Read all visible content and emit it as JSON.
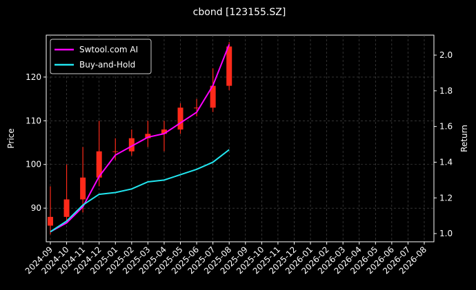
{
  "chart_data": {
    "type": "candlestick",
    "title": "cbond [123155.SZ]",
    "ylabel": "Price",
    "y2label": "Return",
    "x": [
      "2024-09",
      "2024-10",
      "2024-11",
      "2024-12",
      "2025-01",
      "2025-02",
      "2025-03",
      "2025-04",
      "2025-05",
      "2025-06",
      "2025-07",
      "2025-08"
    ],
    "open": [
      86,
      88,
      92,
      97,
      103,
      103,
      106,
      107,
      108,
      113,
      113,
      118
    ],
    "high": [
      95,
      100,
      104,
      110,
      106,
      108,
      110,
      110,
      114,
      115,
      122,
      128
    ],
    "low": [
      84,
      87,
      89,
      95,
      101,
      102,
      104,
      103,
      107,
      111,
      112,
      117
    ],
    "close": [
      88,
      92,
      97,
      103,
      103,
      106,
      107,
      108,
      113,
      113,
      118,
      127
    ],
    "up_color": "#ff2a1a",
    "down_color": "#18b018",
    "series": [
      {
        "name": "Swtool.com AI",
        "color": "#ff00ff",
        "axis": "y2",
        "values": [
          1.01,
          1.06,
          1.15,
          1.32,
          1.44,
          1.49,
          1.54,
          1.56,
          1.62,
          1.68,
          1.83,
          2.06
        ]
      },
      {
        "name": "Buy-and-Hold",
        "color": "#22e6f0",
        "axis": "y2",
        "values": [
          1.01,
          1.07,
          1.16,
          1.22,
          1.23,
          1.25,
          1.29,
          1.3,
          1.33,
          1.36,
          1.4,
          1.47
        ]
      }
    ],
    "xticks": [
      "2024-09",
      "2024-10",
      "2024-11",
      "2024-12",
      "2025-01",
      "2025-02",
      "2025-03",
      "2025-04",
      "2025-05",
      "2025-06",
      "2025-07",
      "2025-08",
      "2025-09",
      "2025-10",
      "2025-11",
      "2025-12",
      "2026-01",
      "2026-02",
      "2026-03",
      "2026-04",
      "2026-05",
      "2026-06",
      "2026-07",
      "2026-08"
    ],
    "ylim": [
      82.3,
      129.6
    ],
    "yticks": [
      90,
      100,
      110,
      120
    ],
    "y2lim": [
      0.954,
      2.112
    ],
    "y2ticks": [
      {
        "value": 1,
        "label": "1.0"
      },
      {
        "value": 1.2,
        "label": "1.2"
      },
      {
        "value": 1.4,
        "label": "1.4"
      },
      {
        "value": 1.6,
        "label": "1.6"
      },
      {
        "value": 1.8,
        "label": "1.8"
      },
      {
        "value": 2,
        "label": "2.0"
      }
    ],
    "grid": true,
    "legend": "upper left"
  }
}
